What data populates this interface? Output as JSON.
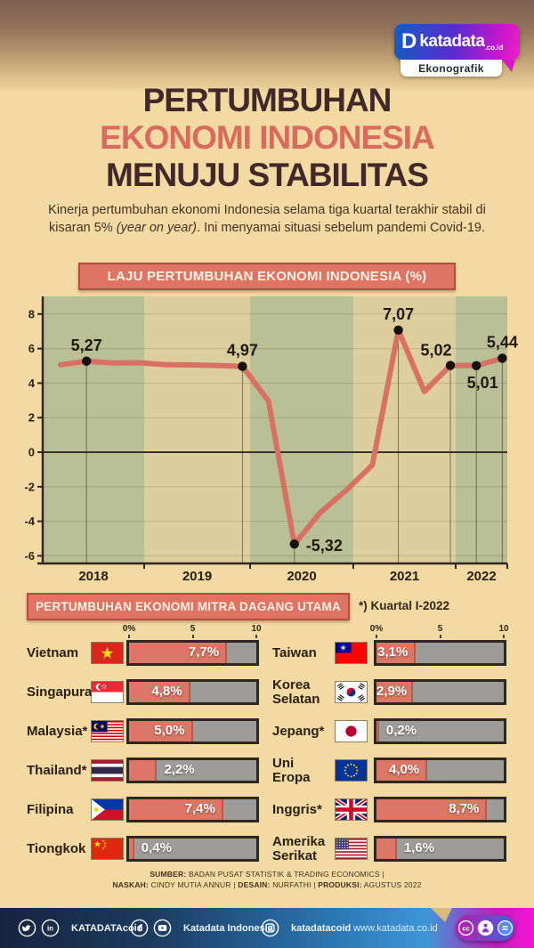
{
  "logo": {
    "d": "D",
    "brand": "katadata",
    "tld": ".co.id",
    "tagline": "Ekonografik"
  },
  "title": {
    "line1": "PERTUMBUHAN",
    "line2": "EKONOMI INDONESIA",
    "line3": "MENUJU STABILITAS"
  },
  "intro": {
    "part1": "Kinerja pertumbuhan ekonomi Indonesia selama tiga kuartal terakhir stabil di kisaran 5% ",
    "italic": "(year on year)",
    "part2": ". Ini menyamai situasi sebelum pandemi Covid-19."
  },
  "chart_data": [
    {
      "type": "line",
      "title": "LAJU PERTUMBUHAN EKONOMI INDONESIA (%)",
      "years": [
        "2018",
        "2019",
        "2020",
        "2021",
        "2022"
      ],
      "x": [
        "2018 Q1",
        "2018 Q2",
        "2018 Q3",
        "2018 Q4",
        "2019 Q1",
        "2019 Q2",
        "2019 Q3",
        "2019 Q4",
        "2020 Q1",
        "2020 Q2",
        "2020 Q3",
        "2020 Q4",
        "2021 Q1",
        "2021 Q2",
        "2021 Q3",
        "2021 Q4",
        "2022 Q1",
        "2022 Q2"
      ],
      "values": [
        5.06,
        5.27,
        5.17,
        5.18,
        5.07,
        5.05,
        5.02,
        4.97,
        2.97,
        -5.32,
        -3.49,
        -2.19,
        -0.74,
        7.07,
        3.51,
        5.02,
        5.01,
        5.44
      ],
      "labeled_points": [
        {
          "i": 1,
          "text": "5,27",
          "pos": "above"
        },
        {
          "i": 7,
          "text": "4,97",
          "pos": "above"
        },
        {
          "i": 9,
          "text": "-5,32",
          "pos": "right"
        },
        {
          "i": 13,
          "text": "7,07",
          "pos": "above"
        },
        {
          "i": 15,
          "text": "5,02",
          "pos": "above-left"
        },
        {
          "i": 16,
          "text": "5,01",
          "pos": "below"
        },
        {
          "i": 17,
          "text": "5,44",
          "pos": "above"
        }
      ],
      "yticks": [
        8,
        6,
        4,
        2,
        0,
        -2,
        -4,
        -6
      ],
      "ylim": [
        -6.5,
        9
      ],
      "grid": true,
      "band_colors": [
        "#b9c095",
        "#ddcf9d"
      ],
      "line_color": "#d97064",
      "dot_color": "#17110d"
    },
    {
      "type": "bar",
      "title": "PERTUMBUHAN EKONOMI MITRA DAGANG UTAMA",
      "note": "*) Kuartal I-2022",
      "xlim": [
        0,
        10
      ],
      "xticks": [
        "0%",
        "5",
        "10"
      ],
      "bar_color": "#dc7666",
      "track_color": "#9d9c98",
      "columns": [
        {
          "rows": [
            {
              "country": "Vietnam",
              "flag": "vietnam",
              "value": 7.7,
              "label": "7,7%"
            },
            {
              "country": "Singapura",
              "flag": "singapura",
              "value": 4.8,
              "label": "4,8%"
            },
            {
              "country": "Malaysia*",
              "flag": "malaysia",
              "value": 5.0,
              "label": "5,0%"
            },
            {
              "country": "Thailand*",
              "flag": "thailand",
              "value": 2.2,
              "label": "2,2%"
            },
            {
              "country": "Filipina",
              "flag": "filipina",
              "value": 7.4,
              "label": "7,4%"
            },
            {
              "country": "Tiongkok",
              "flag": "tiongkok",
              "value": 0.4,
              "label": "0,4%"
            }
          ]
        },
        {
          "rows": [
            {
              "country": "Taiwan",
              "flag": "taiwan",
              "value": 3.1,
              "label": "3,1%"
            },
            {
              "country": "Korea Selatan",
              "flag": "korea-selatan",
              "value": 2.9,
              "label": "2,9%"
            },
            {
              "country": "Jepang*",
              "flag": "jepang",
              "value": 0.2,
              "label": "0,2%"
            },
            {
              "country": "Uni Eropa",
              "flag": "uni-eropa",
              "value": 4.0,
              "label": "4,0%"
            },
            {
              "country": "Inggris*",
              "flag": "inggris",
              "value": 8.7,
              "label": "8,7%"
            },
            {
              "country": "Amerika Serikat",
              "flag": "amerika-serikat",
              "value": 1.6,
              "label": "1,6%"
            }
          ]
        }
      ]
    }
  ],
  "credits": {
    "line1": [
      {
        "text": "SUMBER:",
        "bold": true
      },
      {
        "text": " BADAN PUSAT STATISTIK & TRADING ECONOMICS |",
        "bold": false
      }
    ],
    "line2": [
      {
        "text": "NASKAH:",
        "bold": true
      },
      {
        "text": " CINDY MUTIA ANNUR | ",
        "bold": false
      },
      {
        "text": "DESAIN:",
        "bold": true
      },
      {
        "text": " NURFATHI | ",
        "bold": false
      },
      {
        "text": "PRODUKSI:",
        "bold": true
      },
      {
        "text": " AGUSTUS 2022",
        "bold": false
      }
    ]
  },
  "bottombar": {
    "handle_twitter_linkedin": "KATADATAcoid",
    "handle_fb_youtube": "Katadata Indonesia",
    "handle_instagram": "katadatacoid",
    "url": "www.katadata.co.id"
  }
}
